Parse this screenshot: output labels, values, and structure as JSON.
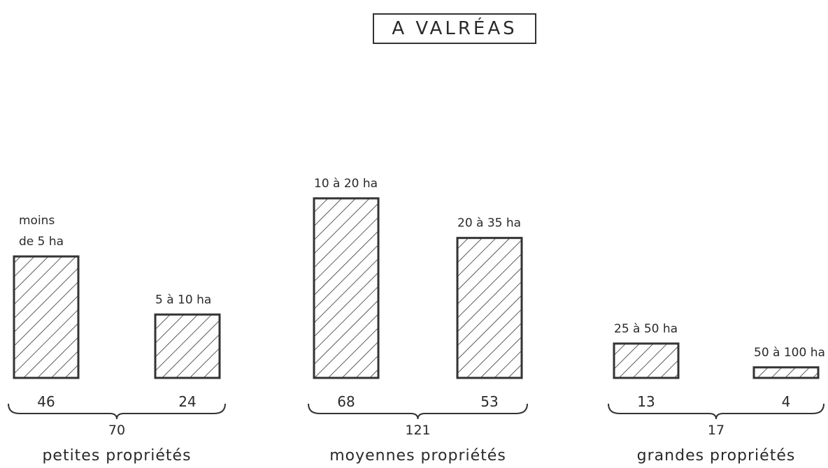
{
  "chart_data": {
    "type": "bar",
    "title": "A VALRÉAS",
    "xlabel": "",
    "ylabel": "",
    "hatch_color": "#333333",
    "categories": [
      "moins de 5 ha",
      "5 à 10 ha",
      "10 à 20 ha",
      "20 à 35 ha",
      "25 à 50 ha",
      "50 à 100 ha"
    ],
    "values": [
      46,
      24,
      68,
      53,
      13,
      4
    ],
    "value_labels": [
      "46",
      "24",
      "68",
      "53",
      "13",
      "4"
    ],
    "groups": [
      {
        "name": "petites propriétés",
        "total": "70",
        "members": [
          0,
          1
        ]
      },
      {
        "name": "moyennes propriétés",
        "total": "121",
        "members": [
          2,
          3
        ]
      },
      {
        "name": "grandes propriétés",
        "total": "17",
        "members": [
          4,
          5
        ]
      }
    ]
  }
}
